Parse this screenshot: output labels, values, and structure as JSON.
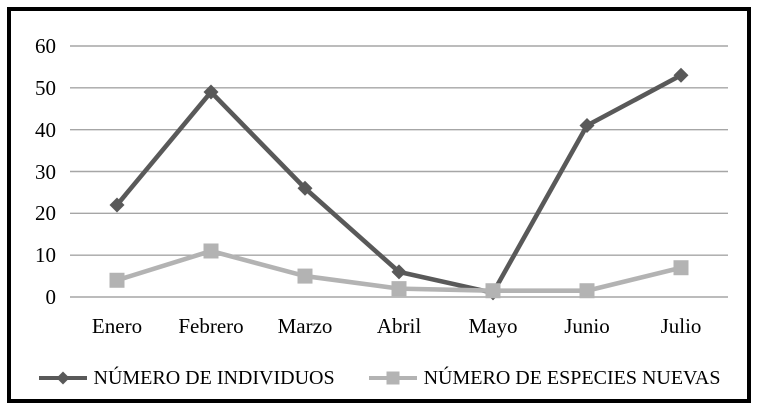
{
  "chart_data": {
    "type": "line",
    "categories": [
      "Enero",
      "Febrero",
      "Marzo",
      "Abril",
      "Mayo",
      "Junio",
      "Julio"
    ],
    "series": [
      {
        "name": "NÚMERO DE INDIVIDUOS",
        "values": [
          22,
          49,
          26,
          6,
          1,
          41,
          53
        ],
        "color": "#595959",
        "marker": "diamond"
      },
      {
        "name": "NÚMERO DE ESPECIES NUEVAS",
        "values": [
          4,
          11,
          5,
          2,
          1.5,
          1.5,
          7
        ],
        "color": "#b3b3b3",
        "marker": "square"
      }
    ],
    "yticks": [
      60,
      50,
      40,
      30,
      20,
      10,
      0
    ],
    "ylim": [
      0,
      60
    ],
    "title": "",
    "xlabel": "",
    "ylabel": "",
    "grid": true,
    "legend_position": "bottom"
  },
  "colors": {
    "frame_border": "#000000",
    "gridline": "#a6a6a6",
    "text": "#000000",
    "background": "#ffffff"
  }
}
